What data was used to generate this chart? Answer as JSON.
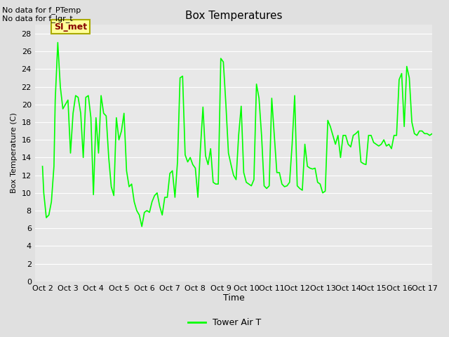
{
  "title": "Box Temperatures",
  "ylabel": "Box Temperature (C)",
  "xlabel": "Time",
  "no_data_line1": "No data for f_PTemp",
  "no_data_line2": "No data for f_lgr_t",
  "si_met_label": "SI_met",
  "ylim": [
    0,
    29
  ],
  "yticks": [
    0,
    2,
    4,
    6,
    8,
    10,
    12,
    14,
    16,
    18,
    20,
    22,
    24,
    26,
    28
  ],
  "xtick_labels": [
    "Oct 2",
    "Oct 3",
    "Oct 4",
    "Oct 5",
    "Oct 6",
    "Oct 7",
    "Oct 8",
    "Oct 9",
    "Oct 10",
    "Oct 11",
    "Oct 12",
    "Oct 13",
    "Oct 14",
    "Oct 15",
    "Oct 16",
    "Oct 17"
  ],
  "line_color": "#00ff00",
  "line_width": 1.2,
  "fig_bg_color": "#e0e0e0",
  "plot_bg_color": "#e8e8e8",
  "grid_color": "#ffffff",
  "legend_label": "Tower Air T",
  "si_met_bg": "#ffff99",
  "si_met_border": "#aaaa00",
  "si_met_fg": "#880000",
  "x_data": [
    0.0,
    0.05,
    0.15,
    0.25,
    0.35,
    0.45,
    0.5,
    0.6,
    0.7,
    0.8,
    0.9,
    1.0,
    1.1,
    1.2,
    1.3,
    1.4,
    1.5,
    1.6,
    1.7,
    1.8,
    1.9,
    2.0,
    2.1,
    2.2,
    2.3,
    2.4,
    2.5,
    2.6,
    2.7,
    2.8,
    2.9,
    3.0,
    3.1,
    3.2,
    3.3,
    3.4,
    3.5,
    3.6,
    3.7,
    3.8,
    3.9,
    4.0,
    4.1,
    4.2,
    4.3,
    4.4,
    4.5,
    4.6,
    4.7,
    4.8,
    4.9,
    5.0,
    5.1,
    5.2,
    5.3,
    5.4,
    5.5,
    5.6,
    5.7,
    5.8,
    5.9,
    6.0,
    6.1,
    6.2,
    6.3,
    6.4,
    6.5,
    6.6,
    6.7,
    6.8,
    6.9,
    7.0,
    7.1,
    7.2,
    7.3,
    7.4,
    7.5,
    7.6,
    7.7,
    7.8,
    7.9,
    8.0,
    8.1,
    8.2,
    8.3,
    8.4,
    8.5,
    8.6,
    8.7,
    8.8,
    8.9,
    9.0,
    9.1,
    9.2,
    9.3,
    9.4,
    9.5,
    9.6,
    9.7,
    9.8,
    9.9,
    10.0,
    10.1,
    10.2,
    10.3,
    10.4,
    10.5,
    10.6,
    10.7,
    10.8,
    10.9,
    11.0,
    11.1,
    11.2,
    11.3,
    11.4,
    11.5,
    11.6,
    11.7,
    11.8,
    11.9,
    12.0,
    12.1,
    12.2,
    12.3,
    12.4,
    12.5,
    12.6,
    12.7,
    12.8,
    12.9,
    13.0,
    13.1,
    13.2,
    13.3,
    13.4,
    13.5,
    13.6,
    13.7,
    13.8,
    13.9,
    14.0,
    14.1,
    14.2,
    14.3,
    14.4,
    14.5,
    14.6,
    14.7,
    14.8,
    14.9,
    15.0,
    15.1,
    15.2,
    15.3,
    15.4,
    15.5,
    15.6,
    15.7,
    15.8,
    15.9
  ],
  "y_data": [
    13.0,
    10.0,
    7.2,
    7.5,
    9.0,
    13.0,
    20.5,
    27.0,
    22.0,
    19.5,
    20.0,
    20.5,
    14.5,
    19.0,
    21.0,
    20.8,
    19.0,
    14.0,
    20.8,
    21.0,
    18.5,
    9.8,
    18.5,
    14.5,
    21.0,
    19.0,
    18.7,
    14.0,
    10.7,
    9.7,
    18.5,
    16.0,
    17.0,
    19.0,
    12.5,
    10.7,
    11.0,
    9.0,
    8.0,
    7.5,
    6.2,
    7.8,
    8.0,
    7.8,
    9.0,
    9.7,
    10.0,
    8.5,
    7.5,
    9.5,
    9.5,
    12.2,
    12.5,
    9.5,
    13.5,
    23.0,
    23.2,
    14.3,
    13.5,
    14.0,
    13.2,
    12.8,
    9.5,
    15.0,
    19.7,
    14.2,
    13.2,
    15.0,
    11.2,
    11.0,
    11.0,
    25.2,
    24.8,
    20.0,
    14.5,
    13.2,
    12.0,
    11.5,
    16.5,
    19.8,
    12.3,
    11.2,
    11.0,
    10.8,
    11.5,
    22.3,
    20.7,
    16.5,
    10.8,
    10.5,
    10.8,
    20.7,
    16.5,
    12.3,
    12.3,
    11.0,
    10.7,
    10.8,
    11.2,
    15.5,
    21.0,
    10.8,
    10.5,
    10.3,
    15.5,
    13.0,
    12.8,
    12.7,
    12.8,
    11.2,
    11.0,
    10.0,
    10.2,
    18.2,
    17.5,
    16.5,
    15.5,
    16.5,
    14.0,
    16.5,
    16.5,
    15.5,
    15.2,
    16.5,
    16.7,
    17.0,
    13.5,
    13.3,
    13.2,
    16.5,
    16.5,
    15.7,
    15.5,
    15.3,
    15.5,
    16.0,
    15.3,
    15.5,
    15.0,
    16.5,
    16.5,
    22.8,
    23.5,
    17.5,
    24.3,
    23.0,
    18.0,
    16.7,
    16.5,
    17.0,
    17.0,
    16.7,
    16.7,
    16.5,
    16.7,
    16.5,
    17.3,
    17.0,
    16.5,
    17.0,
    17.0
  ]
}
